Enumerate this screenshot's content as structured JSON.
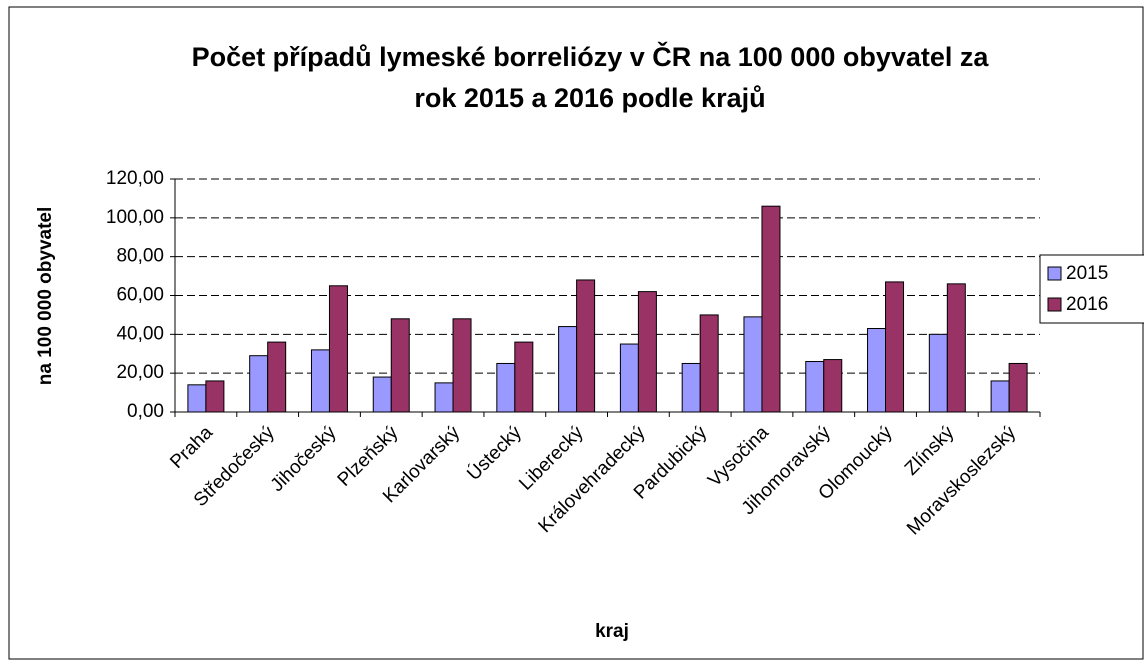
{
  "chart_data": {
    "type": "bar",
    "title": [
      "Počet případů lymeské borreliózy v ČR na 100 000 obyvatel za",
      "rok 2015 a 2016 podle krajů"
    ],
    "x_label": "kraj",
    "y_label": "na 100 000 obyvatel",
    "categories": [
      "Praha",
      "Středočeský",
      "Jihočeský",
      "Plzeňský",
      "Karlovarský",
      "Ústecký",
      "Liberecký",
      "Královehradecký",
      "Pardubický",
      "Vysočina",
      "Jihomoravský",
      "Olomoucký",
      "Zlínský",
      "Moravskoslezský"
    ],
    "series": [
      {
        "name": "2015",
        "color": "#9999ff",
        "values": [
          14,
          29,
          32,
          18,
          15,
          25,
          44,
          35,
          25,
          49,
          26,
          43,
          40,
          16
        ]
      },
      {
        "name": "2016",
        "color": "#993366",
        "values": [
          16,
          36,
          65,
          48,
          48,
          36,
          68,
          62,
          50,
          106,
          27,
          67,
          66,
          25
        ]
      }
    ],
    "ylim": [
      0,
      120
    ],
    "yticks": [
      {
        "value": 0,
        "label": "0,00"
      },
      {
        "value": 20,
        "label": "20,00"
      },
      {
        "value": 40,
        "label": "40,00"
      },
      {
        "value": 60,
        "label": "60,00"
      },
      {
        "value": 80,
        "label": "80,00"
      },
      {
        "value": 100,
        "label": "100,00"
      },
      {
        "value": 120,
        "label": "120,00"
      }
    ],
    "grid": true,
    "legend": "right"
  }
}
